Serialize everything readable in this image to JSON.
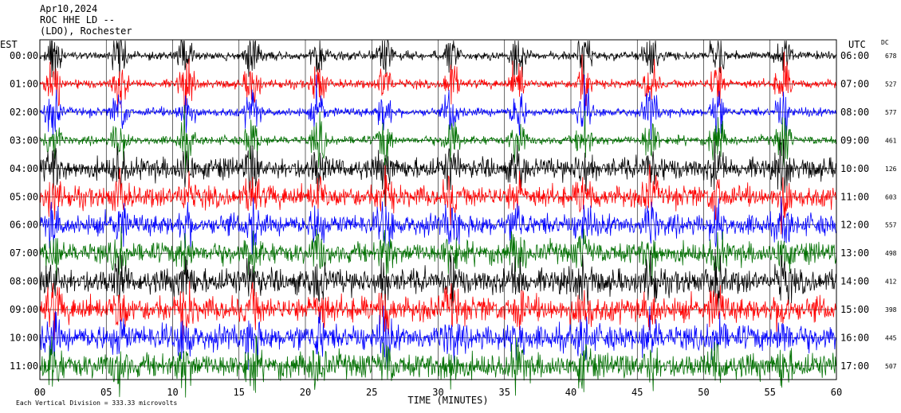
{
  "header": {
    "date": "Apr10,2024",
    "station": "ROC HHE LD --",
    "location": "(LDO), Rochester"
  },
  "left_label": "EST",
  "right_label": "UTC",
  "dc_label": "DC",
  "footer_note": "Each Vertical Division = 333.33 microvolts",
  "chart_data": {
    "type": "line",
    "xlabel": "TIME (MINUTES)",
    "x_ticks": [
      "00",
      "05",
      "10",
      "15",
      "20",
      "25",
      "30",
      "35",
      "40",
      "45",
      "50",
      "55",
      "60"
    ],
    "xlim": [
      0,
      60
    ],
    "colors": [
      "#000000",
      "#ff0000",
      "#0000ff",
      "#007000"
    ],
    "rows": [
      {
        "est": "00:00",
        "utc": "06:00",
        "dc": "678"
      },
      {
        "est": "01:00",
        "utc": "07:00",
        "dc": "527"
      },
      {
        "est": "02:00",
        "utc": "08:00",
        "dc": "577"
      },
      {
        "est": "03:00",
        "utc": "09:00",
        "dc": "461"
      },
      {
        "est": "04:00",
        "utc": "10:00",
        "dc": "126"
      },
      {
        "est": "05:00",
        "utc": "11:00",
        "dc": "603"
      },
      {
        "est": "06:00",
        "utc": "12:00",
        "dc": "557"
      },
      {
        "est": "07:00",
        "utc": "13:00",
        "dc": "498"
      },
      {
        "est": "08:00",
        "utc": "14:00",
        "dc": "412"
      },
      {
        "est": "09:00",
        "utc": "15:00",
        "dc": "398"
      },
      {
        "est": "10:00",
        "utc": "16:00",
        "dc": "445"
      },
      {
        "est": "11:00",
        "utc": "17:00",
        "dc": "507"
      }
    ],
    "burst_minutes": [
      1,
      6,
      11,
      16,
      21,
      26,
      31,
      36,
      41,
      46,
      51,
      56
    ]
  }
}
